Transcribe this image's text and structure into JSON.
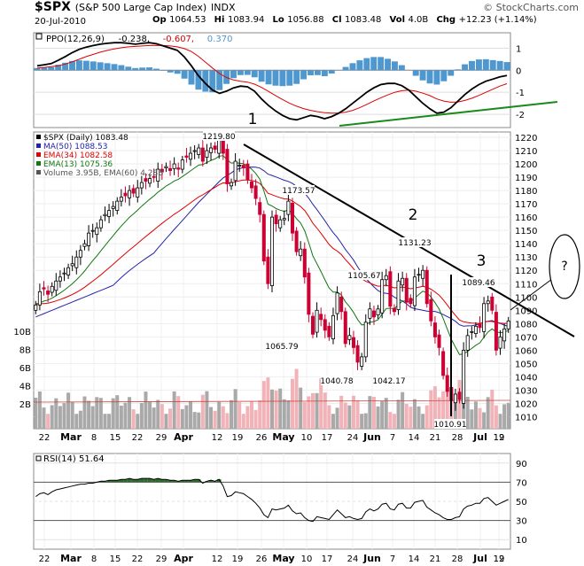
{
  "header": {
    "symbol": "$SPX",
    "description": "(S&P 500 Large Cap Index)",
    "exchange": "INDX",
    "watermark": "© StockCharts.com",
    "date": "20-Jul-2010",
    "quote": [
      {
        "k": "Op",
        "v": "1064.53"
      },
      {
        "k": "Hi",
        "v": "1083.94"
      },
      {
        "k": "Lo",
        "v": "1056.88"
      },
      {
        "k": "Cl",
        "v": "1083.48"
      },
      {
        "k": "Vol",
        "v": "4.0B"
      },
      {
        "k": "Chg",
        "v": "+12.23 (+1.14%)"
      }
    ]
  },
  "colors": {
    "up": "#000000",
    "down": "#cc0033",
    "ma50": "#2222aa",
    "ema34": "#dd0000",
    "ema13": "#117711",
    "volume": "#a9a9a9",
    "volume_down": "#f2b3b8",
    "histogram": "#4e97cf",
    "rsi_fill": "#2e6b2e",
    "trend": "#000000",
    "ppo_trend": "#1a8a1a"
  },
  "chart_data": [
    {
      "type": "line",
      "panel": "PPO",
      "legend": [
        {
          "text": "PPO(12,26,9)",
          "color": "#000000"
        },
        {
          "text": "-0.238,",
          "color": "#000000"
        },
        {
          "text": "-0.607,",
          "color": "#dd0000"
        },
        {
          "text": "0.370",
          "color": "#4e97cf"
        }
      ],
      "ylim": [
        -2.6,
        1.7
      ],
      "yticks": [
        1,
        0,
        -1,
        -2
      ],
      "series": [
        {
          "name": "PPO(12,26,9)",
          "values": [
            0.2,
            0.25,
            0.3,
            0.45,
            0.62,
            0.8,
            0.95,
            1.05,
            1.12,
            1.18,
            1.22,
            1.25,
            1.25,
            1.22,
            1.18,
            1.22,
            1.25,
            1.2,
            1.1,
            1.0,
            0.9,
            0.6,
            0.2,
            -0.25,
            -0.6,
            -0.9,
            -1.05,
            -0.95,
            -0.8,
            -0.72,
            -0.75,
            -0.95,
            -1.3,
            -1.6,
            -1.85,
            -2.05,
            -2.2,
            -2.25,
            -2.15,
            -2.05,
            -2.1,
            -2.2,
            -2.1,
            -1.95,
            -1.75,
            -1.5,
            -1.25,
            -1.0,
            -0.8,
            -0.65,
            -0.6,
            -0.6,
            -0.7,
            -0.9,
            -1.2,
            -1.5,
            -1.75,
            -1.95,
            -1.9,
            -1.7,
            -1.4,
            -1.1,
            -0.85,
            -0.65,
            -0.5,
            -0.4,
            -0.3,
            -0.24
          ]
        },
        {
          "name": "signal",
          "values": [
            0.1,
            0.13,
            0.16,
            0.2,
            0.28,
            0.38,
            0.5,
            0.62,
            0.72,
            0.82,
            0.9,
            0.97,
            1.02,
            1.06,
            1.08,
            1.1,
            1.12,
            1.13,
            1.12,
            1.1,
            1.06,
            0.98,
            0.85,
            0.63,
            0.37,
            0.1,
            -0.15,
            -0.33,
            -0.44,
            -0.5,
            -0.54,
            -0.63,
            -0.78,
            -0.96,
            -1.15,
            -1.33,
            -1.5,
            -1.63,
            -1.74,
            -1.82,
            -1.88,
            -1.93,
            -1.95,
            -1.94,
            -1.9,
            -1.82,
            -1.7,
            -1.55,
            -1.4,
            -1.25,
            -1.12,
            -1.0,
            -0.93,
            -0.9,
            -0.95,
            -1.04,
            -1.15,
            -1.3,
            -1.4,
            -1.45,
            -1.44,
            -1.37,
            -1.27,
            -1.14,
            -1.0,
            -0.86,
            -0.72,
            -0.61
          ]
        },
        {
          "name": "histogram",
          "values": [
            0.1,
            0.12,
            0.14,
            0.25,
            0.34,
            0.42,
            0.45,
            0.43,
            0.4,
            0.36,
            0.32,
            0.28,
            0.23,
            0.16,
            0.1,
            0.12,
            0.13,
            0.07,
            -0.02,
            -0.1,
            -0.16,
            -0.38,
            -0.65,
            -0.88,
            -0.97,
            -1.0,
            -0.9,
            -0.62,
            -0.36,
            -0.22,
            -0.21,
            -0.32,
            -0.52,
            -0.64,
            -0.7,
            -0.72,
            -0.7,
            -0.62,
            -0.41,
            -0.23,
            -0.22,
            -0.27,
            -0.15,
            -0.01,
            0.15,
            0.32,
            0.45,
            0.55,
            0.6,
            0.6,
            0.52,
            0.4,
            0.23,
            0.0,
            -0.25,
            -0.46,
            -0.6,
            -0.65,
            -0.5,
            -0.25,
            0.04,
            0.27,
            0.42,
            0.49,
            0.5,
            0.46,
            0.42,
            0.37
          ]
        }
      ]
    },
    {
      "type": "candlestick",
      "panel": "price",
      "title": "$SPX (Daily) 1083.48",
      "legend": [
        {
          "text": "$SPX (Daily) 1083.48",
          "color": "#000000"
        },
        {
          "text": "MA(50) 1088.53",
          "color": "#2222aa"
        },
        {
          "text": "EMA(34) 1082.58",
          "color": "#dd0000"
        },
        {
          "text": "EMA(13) 1075.36",
          "color": "#117711"
        },
        {
          "text": "Volume 3.95B, EMA(60) 4.28B",
          "color": "#555555"
        }
      ],
      "ylim": [
        1001,
        1224
      ],
      "yticks": [
        1220,
        1210,
        1200,
        1190,
        1180,
        1170,
        1160,
        1150,
        1140,
        1130,
        1120,
        1110,
        1100,
        1090,
        1080,
        1070,
        1060,
        1050,
        1040,
        1030,
        1020,
        1010
      ],
      "x_labels": [
        "22",
        "Mar",
        "8",
        "15",
        "22",
        "29",
        "Apr",
        "12",
        "19",
        "26",
        "May",
        "10",
        "17",
        "24",
        "Jun",
        "7",
        "14",
        "21",
        "28",
        "Jul",
        "12",
        "19"
      ],
      "volume_ticks": [
        "10B",
        "8B",
        "6B",
        "4B",
        "2B"
      ],
      "close": [
        1094,
        1104,
        1106,
        1102,
        1108,
        1112,
        1115,
        1118,
        1122,
        1125,
        1130,
        1135,
        1140,
        1148,
        1150,
        1152,
        1158,
        1162,
        1165,
        1168,
        1172,
        1175,
        1176,
        1180,
        1178,
        1182,
        1186,
        1187,
        1189,
        1190,
        1196,
        1194,
        1198,
        1195,
        1200,
        1196,
        1203,
        1205,
        1208,
        1210,
        1212,
        1202,
        1210,
        1212,
        1211,
        1218,
        1208,
        1185,
        1186,
        1202,
        1199,
        1197,
        1188,
        1182,
        1174,
        1162,
        1127,
        1110,
        1160,
        1155,
        1158,
        1159,
        1172,
        1148,
        1134,
        1136,
        1115,
        1087,
        1072,
        1090,
        1083,
        1075,
        1070,
        1086,
        1103,
        1089,
        1065,
        1071,
        1062,
        1051,
        1055,
        1081,
        1091,
        1085,
        1091,
        1113,
        1116,
        1093,
        1089,
        1112,
        1114,
        1096,
        1095,
        1115,
        1117,
        1120,
        1095,
        1082,
        1070,
        1062,
        1041,
        1029,
        1022,
        1027,
        1023,
        1060,
        1071,
        1074,
        1078,
        1077,
        1095,
        1097,
        1090,
        1060,
        1070,
        1076,
        1082
      ]
    },
    {
      "type": "line",
      "panel": "RSI",
      "legend": [
        {
          "text": "RSI(14) 51.64",
          "color": "#000000"
        }
      ],
      "ylim": [
        0,
        100
      ],
      "yticks": [
        90,
        70,
        50,
        30,
        10
      ],
      "values": [
        55,
        58,
        59,
        57,
        60,
        62,
        63,
        64,
        65,
        66,
        67,
        68,
        68,
        69,
        69,
        70,
        71,
        71,
        72,
        72,
        72,
        73,
        73,
        74,
        73,
        73,
        74,
        74,
        74,
        73,
        74,
        73,
        73,
        72,
        72,
        71,
        72,
        72,
        72,
        73,
        73,
        69,
        71,
        72,
        71,
        73,
        66,
        55,
        56,
        60,
        59,
        58,
        55,
        52,
        48,
        43,
        36,
        33,
        42,
        41,
        42,
        43,
        46,
        40,
        37,
        38,
        33,
        30,
        29,
        34,
        33,
        32,
        31,
        36,
        41,
        37,
        33,
        34,
        32,
        31,
        32,
        39,
        42,
        40,
        42,
        47,
        48,
        42,
        41,
        47,
        48,
        43,
        43,
        49,
        50,
        51,
        44,
        41,
        38,
        36,
        33,
        31,
        31,
        33,
        34,
        42,
        45,
        46,
        48,
        48,
        53,
        54,
        50,
        46,
        48,
        50,
        52
      ]
    }
  ],
  "annotations": {
    "label_1": "1",
    "label_2": "2",
    "label_3": "3",
    "label_q": "?",
    "price_labels": [
      "1219.80",
      "1173.57",
      "1065.79",
      "1105.67",
      "1131.23",
      "1040.78",
      "1042.17",
      "1089.46",
      "1010.91"
    ]
  }
}
